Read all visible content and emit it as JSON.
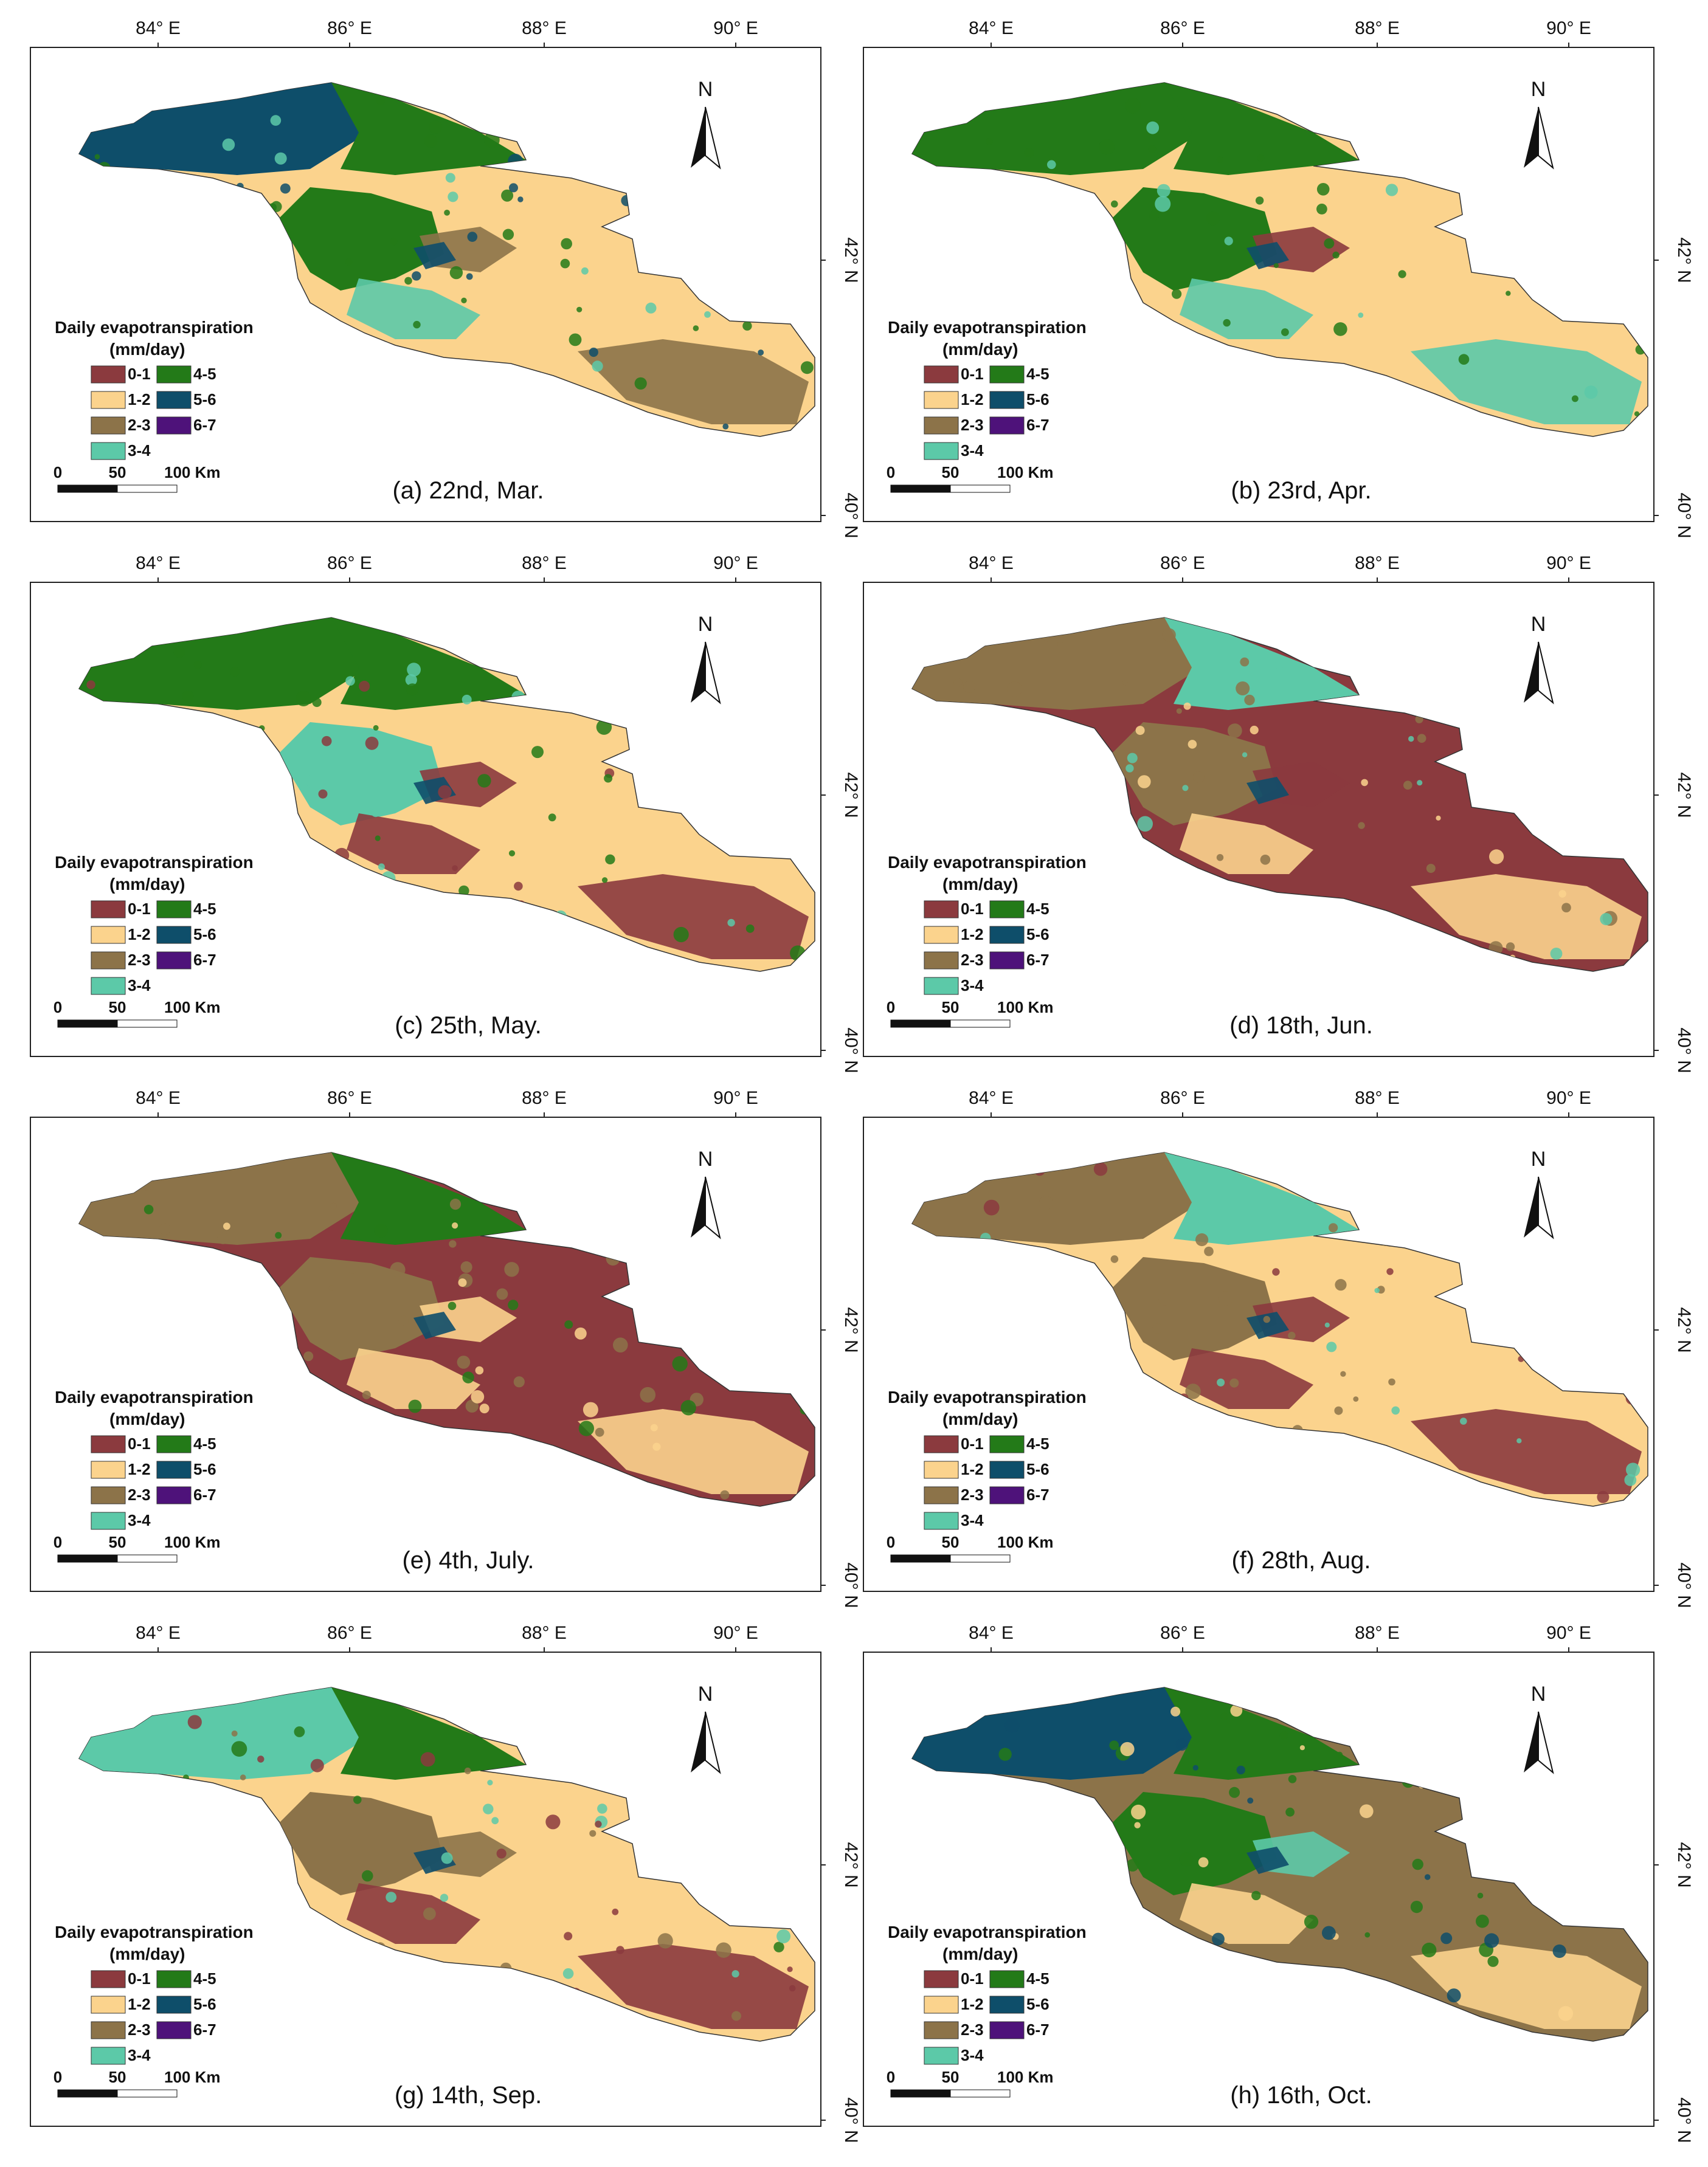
{
  "figure": {
    "lon_labels": [
      "84° E",
      "86° E",
      "88° E",
      "90° E"
    ],
    "lat_labels": [
      "42° N",
      "40° N"
    ],
    "north_label": "N",
    "legend_title": "Daily evapotranspiration",
    "legend_unit": "(mm/day)",
    "legend_classes": [
      {
        "label": "0-1",
        "color": "#8b3a3e"
      },
      {
        "label": "1-2",
        "color": "#fbd38d"
      },
      {
        "label": "2-3",
        "color": "#8c7349"
      },
      {
        "label": "3-4",
        "color": "#5cc9a8"
      },
      {
        "label": "4-5",
        "color": "#237a18"
      },
      {
        "label": "5-6",
        "color": "#0e4e6a"
      },
      {
        "label": "6-7",
        "color": "#4e127a"
      }
    ],
    "scale_labels": [
      "0",
      "50",
      "100 Km"
    ]
  },
  "panels": [
    {
      "caption": "(a) 22nd, Mar.",
      "base": "1-2",
      "ne": "4-5",
      "nw": "5-6",
      "center": "4-5",
      "spots": [
        "3-4",
        "2-3",
        "2-3",
        "5-6"
      ]
    },
    {
      "caption": "(b) 23rd, Apr.",
      "base": "1-2",
      "ne": "4-5",
      "nw": "4-5",
      "center": "4-5",
      "spots": [
        "3-4",
        "3-4",
        "0-1",
        "5-6"
      ]
    },
    {
      "caption": "(c) 25th, May.",
      "base": "1-2",
      "ne": "4-5",
      "nw": "4-5",
      "center": "3-4",
      "spots": [
        "0-1",
        "0-1",
        "0-1",
        "5-6"
      ]
    },
    {
      "caption": "(d) 18th, Jun.",
      "base": "0-1",
      "ne": "3-4",
      "nw": "2-3",
      "center": "2-3",
      "spots": [
        "1-2",
        "1-2",
        "0-1",
        "5-6"
      ]
    },
    {
      "caption": "(e) 4th, July.",
      "base": "0-1",
      "ne": "4-5",
      "nw": "2-3",
      "center": "2-3",
      "spots": [
        "1-2",
        "1-2",
        "1-2",
        "5-6"
      ]
    },
    {
      "caption": "(f) 28th, Aug.",
      "base": "1-2",
      "ne": "3-4",
      "nw": "2-3",
      "center": "2-3",
      "spots": [
        "0-1",
        "0-1",
        "0-1",
        "5-6"
      ]
    },
    {
      "caption": "(g) 14th, Sep.",
      "base": "1-2",
      "ne": "4-5",
      "nw": "3-4",
      "center": "2-3",
      "spots": [
        "0-1",
        "0-1",
        "2-3",
        "5-6"
      ]
    },
    {
      "caption": "(h) 16th, Oct.",
      "base": "2-3",
      "ne": "4-5",
      "nw": "5-6",
      "center": "4-5",
      "spots": [
        "1-2",
        "1-2",
        "3-4",
        "5-6"
      ]
    }
  ]
}
